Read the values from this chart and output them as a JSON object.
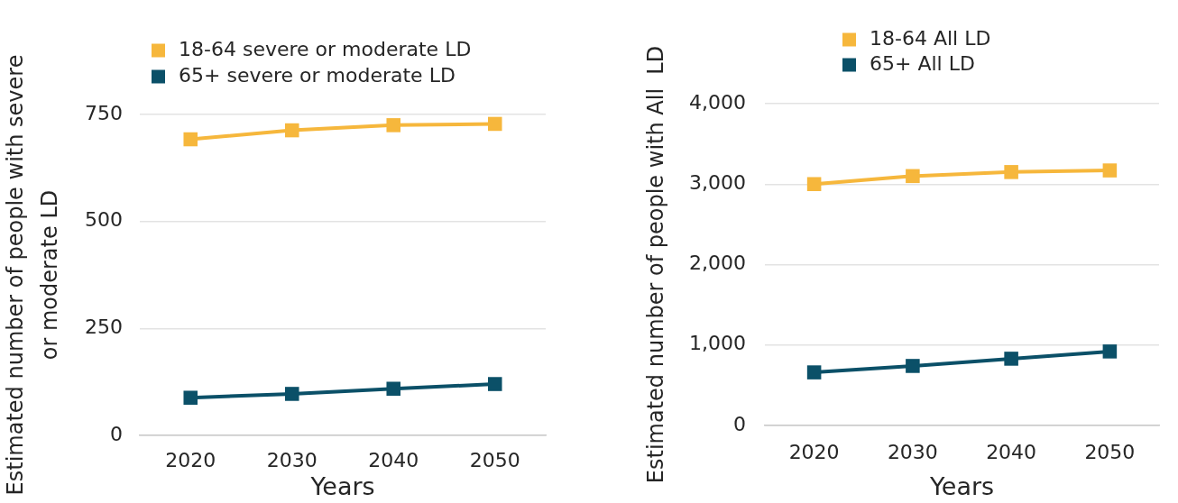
{
  "chart_data": [
    {
      "type": "line",
      "categories": [
        "2020",
        "2030",
        "2040",
        "2050"
      ],
      "series": [
        {
          "name": "18-64 severe or moderate LD",
          "color": "#f6b73c",
          "values": [
            692,
            713,
            725,
            728
          ]
        },
        {
          "name": "65+ severe or moderate LD",
          "color": "#0b5068",
          "values": [
            88,
            97,
            109,
            120
          ]
        }
      ],
      "xlabel": "Years",
      "ylabel": "Estimated number of people with severe or moderate LD",
      "ylim": [
        0,
        750
      ],
      "yticks": [
        0,
        250,
        500,
        750
      ],
      "grid": "y",
      "legend": "top",
      "marker": "square"
    },
    {
      "type": "line",
      "categories": [
        "2020",
        "2030",
        "2040",
        "2050"
      ],
      "series": [
        {
          "name": "18-64 All LD",
          "color": "#f6b73c",
          "values": [
            3000,
            3100,
            3150,
            3170
          ]
        },
        {
          "name": "65+ All LD",
          "color": "#0b5068",
          "values": [
            660,
            740,
            830,
            920
          ]
        }
      ],
      "xlabel": "Years",
      "ylabel": "Estimated number of people with All  LD",
      "ylim": [
        0,
        4000
      ],
      "yticks": [
        0,
        {
          "value": 1000,
          "label": "1,000"
        },
        {
          "value": 2000,
          "label": "2,000"
        },
        {
          "value": 3000,
          "label": "3,000"
        },
        {
          "value": 4000,
          "label": "4,000"
        }
      ],
      "grid": "y",
      "legend": "top",
      "marker": "square"
    }
  ]
}
